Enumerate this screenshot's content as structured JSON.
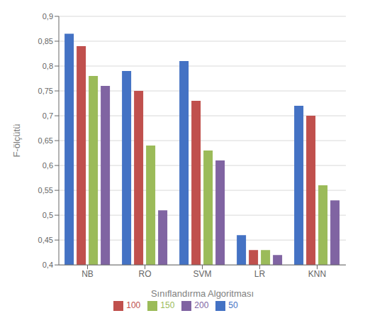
{
  "chart_data": {
    "type": "bar",
    "categories": [
      "NB",
      "RO",
      "SVM",
      "LR",
      "KNN"
    ],
    "series": [
      {
        "name": "50",
        "color": "#4472C4",
        "values": [
          0.865,
          0.79,
          0.81,
          0.46,
          0.72
        ]
      },
      {
        "name": "100",
        "color": "#C0504D",
        "values": [
          0.84,
          0.75,
          0.73,
          0.43,
          0.7
        ]
      },
      {
        "name": "150",
        "color": "#9BBB59",
        "values": [
          0.78,
          0.64,
          0.63,
          0.43,
          0.56
        ]
      },
      {
        "name": "200",
        "color": "#8064A2",
        "values": [
          0.76,
          0.51,
          0.61,
          0.42,
          0.53
        ]
      }
    ],
    "xlabel": "Sınıflandırma Algoritması",
    "ylabel": "F-ölçütü",
    "ylim": [
      0.4,
      0.9
    ],
    "yticks": [
      {
        "value": 0.4,
        "label": "0,4"
      },
      {
        "value": 0.45,
        "label": "0,45"
      },
      {
        "value": 0.5,
        "label": "0,5"
      },
      {
        "value": 0.55,
        "label": "0,55"
      },
      {
        "value": 0.6,
        "label": "0,6"
      },
      {
        "value": 0.65,
        "label": "0,65"
      },
      {
        "value": 0.7,
        "label": "0,7"
      },
      {
        "value": 0.75,
        "label": "0,75"
      },
      {
        "value": 0.8,
        "label": "0,8"
      },
      {
        "value": 0.85,
        "label": "0,85"
      },
      {
        "value": 0.9,
        "label": "0,9"
      }
    ],
    "grid": true,
    "legend": "bottom"
  }
}
